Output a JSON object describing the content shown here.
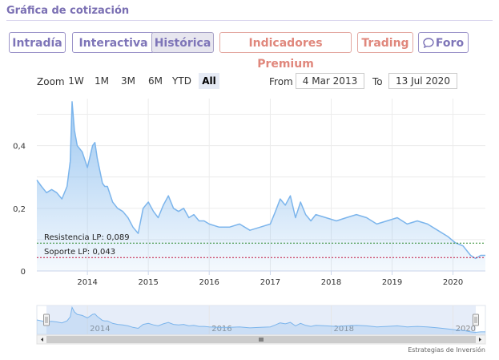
{
  "widget_title": "Gráfica de cotización",
  "tabs": [
    {
      "label": "Intradía",
      "active": false,
      "premium": false
    },
    {
      "label": "Interactiva",
      "active": false,
      "premium": false
    },
    {
      "label": "Histórica",
      "active": true,
      "premium": false
    },
    {
      "label": "Indicadores Premium",
      "active": false,
      "premium": true
    },
    {
      "label": "Trading",
      "active": false,
      "premium": true
    },
    {
      "label": "Foro",
      "active": false,
      "premium": false,
      "icon": "chat-bubble-icon"
    }
  ],
  "range_selector": {
    "zoom_label": "Zoom",
    "buttons": [
      "1W",
      "1M",
      "3M",
      "6M",
      "YTD",
      "All"
    ],
    "selected": "All",
    "from_label": "From",
    "from_value": "4 Mar 2013",
    "to_label": "To",
    "to_value": "13 Jul 2020"
  },
  "credit": "Estrategias de Inversión",
  "colors": {
    "line": "#7cb5ec",
    "resistance": "#2e8b2e",
    "support": "#c0143c",
    "accent": "#7e75b8",
    "premium": "#e0877c"
  },
  "chart_data": {
    "type": "area",
    "xlim": [
      "2013-03-04",
      "2020-07-13"
    ],
    "ylim": [
      0,
      0.55
    ],
    "yticks": [
      0,
      0.2,
      0.4
    ],
    "ytick_labels": [
      "0",
      "0,2",
      "0,4"
    ],
    "xtick_labels": [
      "2014",
      "2015",
      "2016",
      "2017",
      "2018",
      "2019",
      "2020"
    ],
    "grid": true,
    "series": [
      {
        "dates": [
          "2013-03-04",
          "2013-04-01",
          "2013-05-01",
          "2013-06-01",
          "2013-07-01",
          "2013-08-01",
          "2013-09-01",
          "2013-09-20",
          "2013-10-01",
          "2013-10-15",
          "2013-11-01",
          "2013-12-01",
          "2014-01-01",
          "2014-02-01",
          "2014-02-15",
          "2014-03-01",
          "2014-04-01",
          "2014-04-15",
          "2014-05-01",
          "2014-06-01",
          "2014-07-01",
          "2014-08-01",
          "2014-09-01",
          "2014-10-01",
          "2014-11-01",
          "2014-12-01",
          "2015-01-01",
          "2015-02-01",
          "2015-03-01",
          "2015-04-01",
          "2015-05-01",
          "2015-06-01",
          "2015-07-01",
          "2015-08-01",
          "2015-09-01",
          "2015-10-01",
          "2015-11-01",
          "2015-12-01",
          "2016-01-01",
          "2016-03-01",
          "2016-05-01",
          "2016-07-01",
          "2016-09-01",
          "2016-11-01",
          "2017-01-01",
          "2017-02-01",
          "2017-03-01",
          "2017-04-01",
          "2017-05-01",
          "2017-06-01",
          "2017-07-01",
          "2017-08-01",
          "2017-09-01",
          "2017-10-01",
          "2017-12-01",
          "2018-02-01",
          "2018-04-01",
          "2018-06-01",
          "2018-08-01",
          "2018-10-01",
          "2018-12-01",
          "2019-02-01",
          "2019-04-01",
          "2019-06-01",
          "2019-08-01",
          "2019-10-01",
          "2019-12-01",
          "2020-01-15",
          "2020-03-01",
          "2020-04-15",
          "2020-05-15",
          "2020-06-15",
          "2020-07-13"
        ],
        "values": [
          0.29,
          0.27,
          0.25,
          0.26,
          0.25,
          0.23,
          0.27,
          0.35,
          0.54,
          0.45,
          0.4,
          0.38,
          0.33,
          0.4,
          0.41,
          0.36,
          0.28,
          0.27,
          0.27,
          0.22,
          0.2,
          0.19,
          0.17,
          0.14,
          0.12,
          0.2,
          0.22,
          0.19,
          0.17,
          0.21,
          0.24,
          0.2,
          0.19,
          0.2,
          0.17,
          0.18,
          0.16,
          0.16,
          0.15,
          0.14,
          0.14,
          0.15,
          0.13,
          0.14,
          0.15,
          0.19,
          0.23,
          0.21,
          0.24,
          0.17,
          0.22,
          0.18,
          0.16,
          0.18,
          0.17,
          0.16,
          0.17,
          0.18,
          0.17,
          0.15,
          0.16,
          0.17,
          0.15,
          0.16,
          0.15,
          0.13,
          0.11,
          0.09,
          0.08,
          0.05,
          0.04,
          0.05,
          0.05
        ]
      }
    ],
    "annotations": [
      {
        "label": "Resistencia LP: 0,089",
        "value": 0.089,
        "style": "dashed",
        "color": "#2e8b2e"
      },
      {
        "label": "Soporte LP: 0,043",
        "value": 0.043,
        "style": "dashed",
        "color": "#c0143c"
      }
    ],
    "navigator": {
      "xtick_labels": [
        "2014",
        "2016",
        "2018",
        "2020"
      ]
    }
  }
}
